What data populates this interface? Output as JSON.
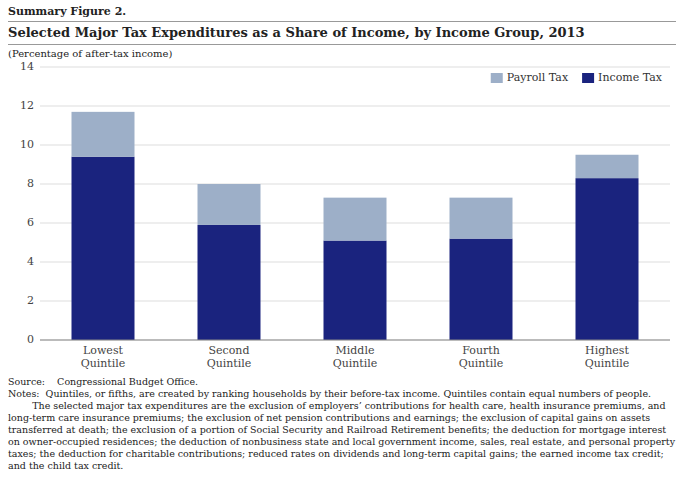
{
  "chart_data": {
    "type": "bar",
    "stacked": true,
    "subtitle": "Summary Figure 2.",
    "title": "Selected Major Tax Expenditures as a Share of Income, by Income Group, 2013",
    "ylabel": "(Percentage of after-tax income)",
    "categories": [
      "Lowest\nQuintile",
      "Second\nQuintile",
      "Middle\nQuintile",
      "Fourth\nQuintile",
      "Highest\nQuintile"
    ],
    "series": [
      {
        "name": "Income Tax",
        "color": "#1a237e",
        "values": [
          9.4,
          5.9,
          5.1,
          5.2,
          8.3
        ]
      },
      {
        "name": "Payroll Tax",
        "color": "#9dafc8",
        "values": [
          2.3,
          2.1,
          2.2,
          2.1,
          1.2
        ]
      }
    ],
    "ylim": [
      0,
      14
    ],
    "yticks": [
      0,
      2,
      4,
      6,
      8,
      10,
      12,
      14
    ],
    "grid": true,
    "legend": "upper right",
    "annotations": [
      "Source:    Congressional Budget Office.",
      "Notes:  Quintiles, or fifths, are created by ranking households by their before-tax income. Quintiles contain equal numbers of people.",
      "        The selected major tax expenditures are the exclusion of employers’ contributions for health care, health insurance premiums, and long-term care insurance premiums; the exclusion of net pension contributions and earnings; the exclusion of capital gains on assets transferred at death; the exclusion of a portion of Social Security and Railroad Retirement benefits; the deduction for mortgage interest on owner-occupied residences; the deduction of nonbusiness state and local government income, sales, real estate, and personal property taxes; the deduction for charitable contributions; reduced rates on dividends and long-term capital gains; the earned income tax credit; and the child tax credit."
    ]
  }
}
